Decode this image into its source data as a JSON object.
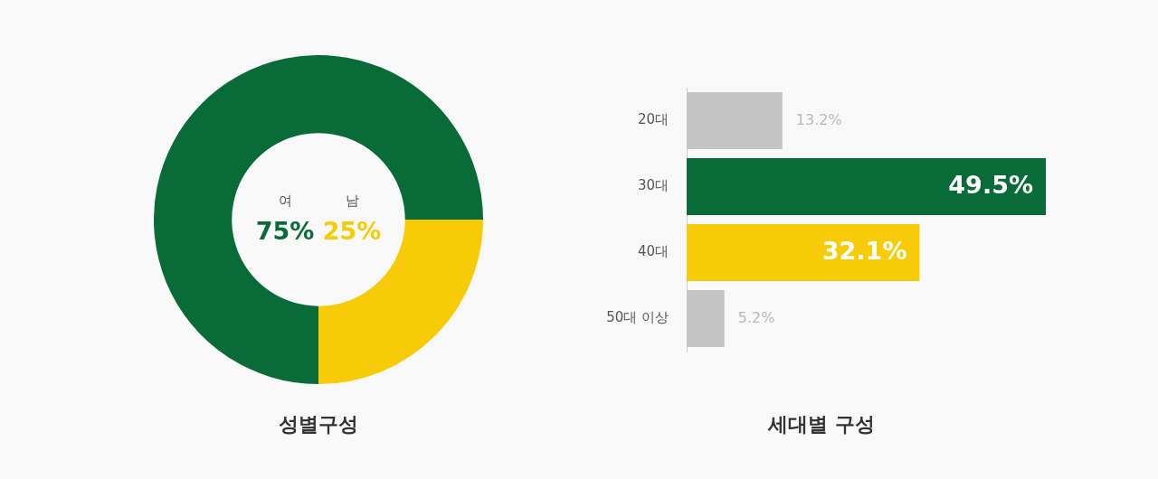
{
  "chart_data": [
    {
      "type": "donut",
      "title": "성별구성",
      "categories": [
        "여",
        "남"
      ],
      "values": [
        75,
        25
      ],
      "colors": [
        "#086b38",
        "#f7cb07"
      ],
      "value_labels": [
        "75%",
        "25%"
      ],
      "legend": false
    },
    {
      "type": "bar",
      "orientation": "horizontal",
      "title": "세대별 구성",
      "categories": [
        "20대",
        "30대",
        "40대",
        "50대 이상"
      ],
      "values": [
        13.2,
        49.5,
        32.1,
        5.2
      ],
      "colors": [
        "#c4c4c4",
        "#086b38",
        "#f7cb07",
        "#c4c4c4"
      ],
      "value_labels": [
        "13.2%",
        "49.5%",
        "32.1%",
        "5.2%"
      ],
      "legend": false,
      "grid": false,
      "tick_labels": "y"
    }
  ]
}
